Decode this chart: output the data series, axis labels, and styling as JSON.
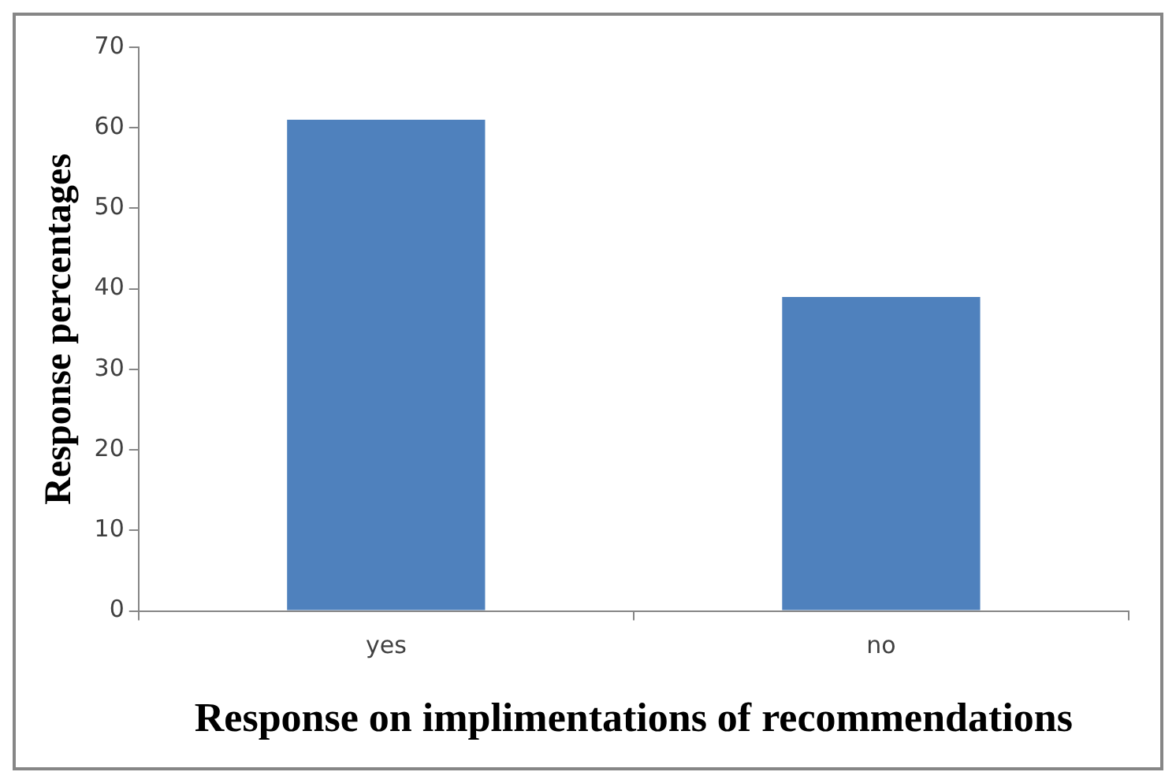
{
  "chart_data": {
    "type": "bar",
    "xlabel": "Response on implimentations of recommendations",
    "ylabel": "Response percentages",
    "categories": [
      "yes",
      "no"
    ],
    "values": [
      61,
      39
    ],
    "color": "#4f81bd",
    "ylim": [
      0,
      70
    ],
    "yticks": [
      0,
      10,
      20,
      30,
      40,
      50,
      60,
      70
    ],
    "legend": false
  }
}
